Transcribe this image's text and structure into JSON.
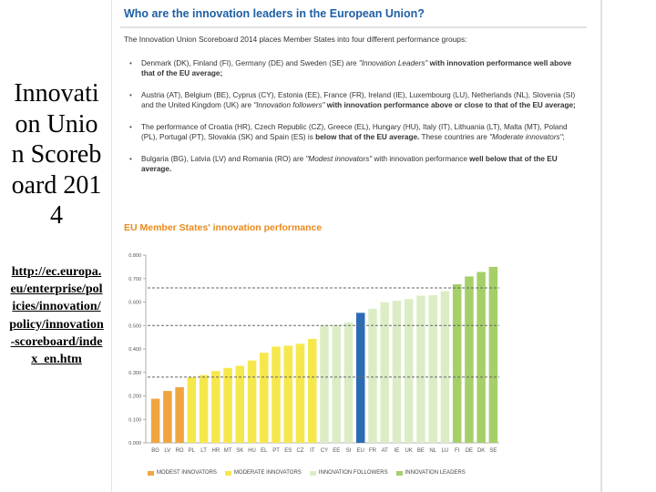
{
  "slide": {
    "title": "Innovation Union Scoreboard 2014",
    "link": "http://ec.europa.eu/enterprise/policies/innovation/policy/innovation-scoreboard/index_en.htm"
  },
  "panel": {
    "heading": "Who are the innovation leaders in the European Union?",
    "intro": "The Innovation Union Scoreboard 2014 places Member States into four different performance groups:",
    "bullets": [
      {
        "plain": "Denmark (DK), Finland (FI), Germany (DE) and Sweden (SE) are ",
        "italic": "\"Innovation Leaders\"",
        "bold": " with innovation performance well above that of the EU average;"
      },
      {
        "plain": "Austria (AT), Belgium (BE), Cyprus (CY), Estonia (EE), France (FR), Ireland (IE), Luxembourg (LU), Netherlands (NL), Slovenia (SI) and the United Kingdom (UK) are ",
        "italic": "\"Innovation followers\"",
        "bold": " with innovation performance above or close to that of the EU average;"
      },
      {
        "plain": "The performance of Croatia (HR), Czech Republic (CZ), Greece (EL), Hungary (HU), Italy (IT), Lithuania (LT), Malta (MT), Poland (PL), Portugal (PT), Slovakia (SK) and Spain (ES) is ",
        "bold": "below that of the EU average.",
        "plain2": " These countries are ",
        "italic": "\"Moderate innovators\"",
        "tail": ";"
      },
      {
        "plain": "Bulgaria (BG), Latvia (LV) and Romania (RO) are ",
        "italic": "\"Modest innovators\"",
        "plain2": " with innovation performance ",
        "bold": "well below that of the EU average."
      }
    ]
  },
  "chart_data": {
    "type": "bar",
    "title": "EU Member States' innovation performance",
    "categories": [
      "BG",
      "LV",
      "RO",
      "PL",
      "LT",
      "HR",
      "MT",
      "SK",
      "HU",
      "EL",
      "PT",
      "ES",
      "CZ",
      "IT",
      "CY",
      "EE",
      "SI",
      "EU",
      "FR",
      "AT",
      "IE",
      "UK",
      "BE",
      "NL",
      "LU",
      "FI",
      "DE",
      "DK",
      "SE"
    ],
    "values": [
      0.188,
      0.221,
      0.237,
      0.279,
      0.289,
      0.306,
      0.319,
      0.328,
      0.351,
      0.384,
      0.41,
      0.414,
      0.422,
      0.443,
      0.501,
      0.502,
      0.513,
      0.554,
      0.571,
      0.599,
      0.606,
      0.613,
      0.627,
      0.629,
      0.646,
      0.676,
      0.709,
      0.728,
      0.75
    ],
    "groups": [
      "modest",
      "modest",
      "modest",
      "moderate",
      "moderate",
      "moderate",
      "moderate",
      "moderate",
      "moderate",
      "moderate",
      "moderate",
      "moderate",
      "moderate",
      "moderate",
      "follower",
      "follower",
      "follower",
      "eu",
      "follower",
      "follower",
      "follower",
      "follower",
      "follower",
      "follower",
      "follower",
      "leader",
      "leader",
      "leader",
      "leader"
    ],
    "ylim": [
      0,
      0.8
    ],
    "yticks": [
      "0.000",
      "0.100",
      "0.200",
      "0.300",
      "0.400",
      "0.500",
      "0.600",
      "0.700",
      "0.800"
    ],
    "reference_lines": [
      0.28,
      0.5,
      0.66
    ],
    "grid": false,
    "legend": [
      {
        "name": "MODEST INNOVATORS",
        "color": "#f0a540"
      },
      {
        "name": "MODERATE INNOVATORS",
        "color": "#f6e84c"
      },
      {
        "name": "INNOVATION FOLLOWERS",
        "color": "#dcedc6"
      },
      {
        "name": "INNOVATION LEADERS",
        "color": "#a6cf6a"
      }
    ],
    "colors": {
      "modest": "#f0a540",
      "moderate": "#f6e84c",
      "follower": "#dcedc6",
      "eu": "#2d6cb5",
      "leader": "#a6cf6a"
    }
  }
}
